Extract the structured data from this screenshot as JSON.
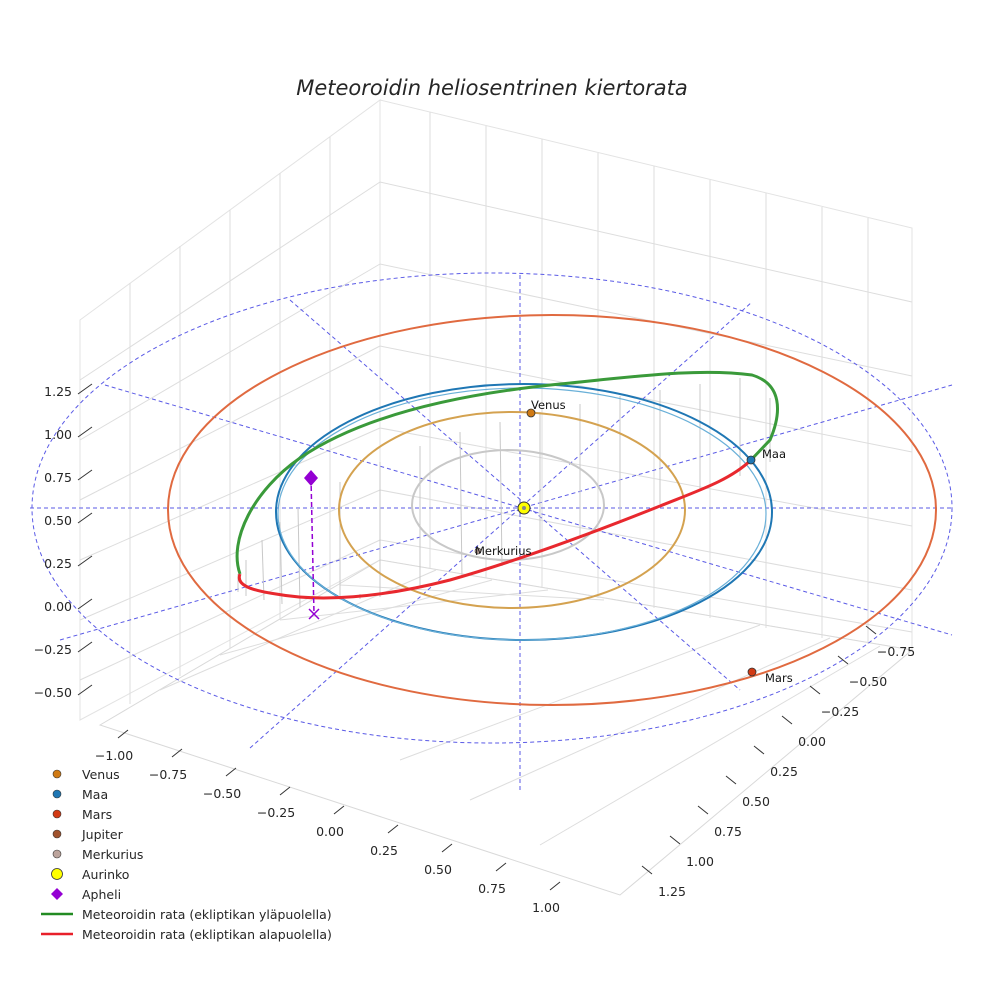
{
  "chart_data": {
    "type": "scatter",
    "projection": "3d",
    "title": "Meteoroidin heliosentrinen kiertorata",
    "z_ticks": [
      "1.25",
      "1.00",
      "0.75",
      "0.50",
      "0.25",
      "0.00",
      "−0.25",
      "−0.50"
    ],
    "x_ticks": [
      "−1.00",
      "−0.75",
      "−0.50",
      "−0.25",
      "0.00",
      "0.25",
      "0.50",
      "0.75",
      "1.00"
    ],
    "y_ticks": [
      "−0.75",
      "−0.50",
      "−0.25",
      "0.00",
      "0.25",
      "0.50",
      "0.75",
      "1.00",
      "1.25"
    ],
    "orbits": [
      {
        "name": "Merkurius",
        "radius_au": 0.387,
        "color": "#c8c8c8"
      },
      {
        "name": "Venus",
        "radius_au": 0.723,
        "color": "#d4a250"
      },
      {
        "name": "Maa",
        "radius_au": 1.0,
        "color": "#1f77b4"
      },
      {
        "name": "Mars",
        "radius_au": 1.524,
        "color": "#e06a40"
      }
    ],
    "points": [
      {
        "name": "Venus",
        "label": "Venus",
        "color": "#d07a14"
      },
      {
        "name": "Maa",
        "label": "Maa",
        "color": "#1f77b4"
      },
      {
        "name": "Mars",
        "label": "Mars",
        "color": "#d23a14"
      },
      {
        "name": "Merkurius",
        "label": "Merkurius",
        "color": "#bca49c"
      },
      {
        "name": "Aurinko",
        "label": "",
        "color": "#ffff00"
      },
      {
        "name": "Apheli",
        "label": "",
        "color": "#9400d3"
      }
    ],
    "legend": [
      {
        "label": "Venus",
        "color": "#d07a14",
        "symbol": "circle"
      },
      {
        "label": "Maa",
        "color": "#1f77b4",
        "symbol": "circle"
      },
      {
        "label": "Mars",
        "color": "#d23a14",
        "symbol": "circle"
      },
      {
        "label": "Jupiter",
        "color": "#a0522d",
        "symbol": "circle"
      },
      {
        "label": "Merkurius",
        "color": "#bca49c",
        "symbol": "circle"
      },
      {
        "label": "Aurinko",
        "color": "#ffff00",
        "symbol": "big-circle"
      },
      {
        "label": "Apheli",
        "color": "#9400d3",
        "symbol": "diamond"
      },
      {
        "label": "Meteoroidin rata (ekliptikan yläpuolella)",
        "color": "#228b22",
        "symbol": "line"
      },
      {
        "label": "Meteoroidin rata (ekliptikan alapuolella)",
        "color": "#e8202a",
        "symbol": "line"
      }
    ],
    "legend_placement": "lower-left",
    "grid": true
  }
}
